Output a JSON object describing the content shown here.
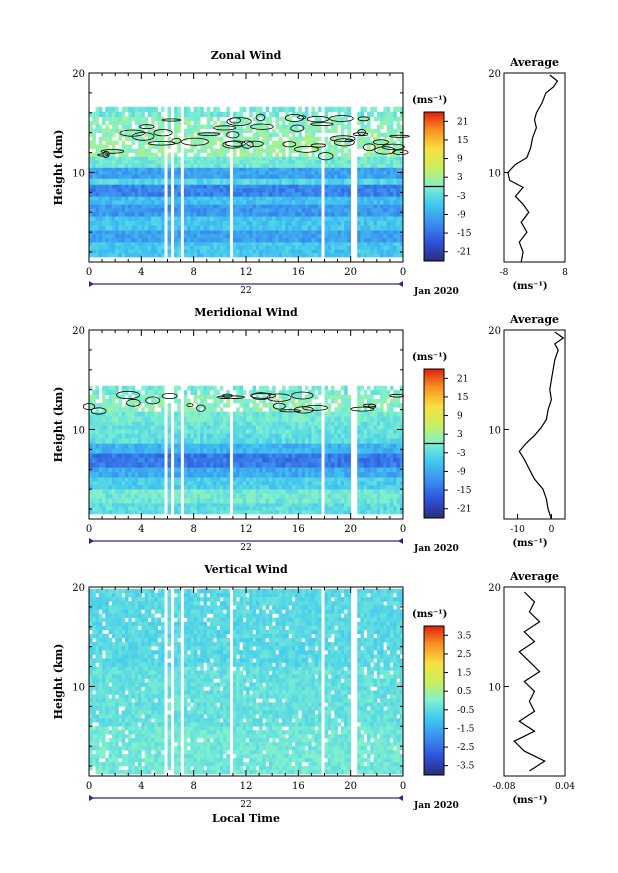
{
  "xaxis": {
    "label": "Local Time",
    "ticks": [
      "0",
      "4",
      "8",
      "12",
      "16",
      "20",
      "0"
    ],
    "date_day": "22",
    "date_month": "Jan 2020",
    "range": [
      0,
      24
    ]
  },
  "chart_data": [
    {
      "type": "heatmap",
      "title": "Zonal Wind",
      "ylabel": "Height (km)",
      "ylim": [
        1,
        20
      ],
      "yticks": [
        "20",
        "10"
      ],
      "contour_threshold": 0,
      "colorbar": {
        "unit": "(ms⁻¹)",
        "range": [
          -24,
          24
        ],
        "ticks": [
          "21",
          "15",
          "9",
          "3",
          "-3",
          "-9",
          "-15",
          "-21"
        ]
      },
      "layers": [
        {
          "z0": 1.5,
          "z1": 3.0,
          "value": -6
        },
        {
          "z0": 3.0,
          "z1": 4.2,
          "value": -10
        },
        {
          "z0": 4.2,
          "z1": 5.6,
          "value": -6
        },
        {
          "z0": 5.6,
          "z1": 6.8,
          "value": -11
        },
        {
          "z0": 6.8,
          "z1": 7.6,
          "value": -7
        },
        {
          "z0": 7.6,
          "z1": 8.8,
          "value": -13
        },
        {
          "z0": 8.8,
          "z1": 9.4,
          "value": -4
        },
        {
          "z0": 9.4,
          "z1": 10.5,
          "value": -10
        },
        {
          "z0": 10.5,
          "z1": 11.6,
          "value": -1
        },
        {
          "z0": 11.6,
          "z1": 13.6,
          "value": 2
        },
        {
          "z0": 13.6,
          "z1": 15.6,
          "value": 1
        },
        {
          "z0": 15.6,
          "z1": 16.6,
          "value": -1
        }
      ],
      "gaps": [
        [
          5.7,
          6.0
        ],
        [
          6.3,
          6.6
        ],
        [
          7.0,
          7.3
        ],
        [
          10.7,
          11.0
        ],
        [
          17.8,
          18.0
        ],
        [
          20.1,
          20.4
        ]
      ],
      "average": {
        "title": "Average",
        "xlim": [
          -8,
          8
        ],
        "xticks": [
          "-8",
          "8"
        ],
        "xunit": "(ms⁻¹)",
        "yticks": [
          "20",
          "10"
        ],
        "profile": [
          [
            1,
            -3.5
          ],
          [
            2,
            -3.0
          ],
          [
            3,
            -4.0
          ],
          [
            4,
            -2.0
          ],
          [
            5,
            -3.5
          ],
          [
            6,
            -1.5
          ],
          [
            6.8,
            -3.0
          ],
          [
            7.6,
            -5.0
          ],
          [
            8.5,
            -3.0
          ],
          [
            9.2,
            -6.5
          ],
          [
            10,
            -7.0
          ],
          [
            10.8,
            -5.0
          ],
          [
            11.5,
            -2.0
          ],
          [
            12.5,
            -1.0
          ],
          [
            13.5,
            -0.5
          ],
          [
            14.5,
            0.5
          ],
          [
            15.3,
            0.0
          ],
          [
            16.0,
            0.5
          ],
          [
            17,
            2.0
          ],
          [
            18,
            3.0
          ],
          [
            18.6,
            5.0
          ],
          [
            19.2,
            6.0
          ],
          [
            19.8,
            4.0
          ]
        ]
      }
    },
    {
      "type": "heatmap",
      "title": "Meridional Wind",
      "ylabel": "Height (km)",
      "ylim": [
        1,
        20
      ],
      "yticks": [
        "20",
        "10"
      ],
      "contour_threshold": 0,
      "colorbar": {
        "unit": "(ms⁻¹)",
        "range": [
          -24,
          24
        ],
        "ticks": [
          "21",
          "15",
          "9",
          "3",
          "-3",
          "-9",
          "-15",
          "-21"
        ]
      },
      "layers": [
        {
          "z0": 1.5,
          "z1": 2.6,
          "value": -3
        },
        {
          "z0": 2.6,
          "z1": 4.0,
          "value": -1
        },
        {
          "z0": 4.0,
          "z1": 5.2,
          "value": -5
        },
        {
          "z0": 5.2,
          "z1": 6.2,
          "value": -9
        },
        {
          "z0": 6.2,
          "z1": 7.6,
          "value": -14
        },
        {
          "z0": 7.6,
          "z1": 8.6,
          "value": -8
        },
        {
          "z0": 8.6,
          "z1": 9.6,
          "value": -3
        },
        {
          "z0": 9.6,
          "z1": 10.8,
          "value": -2
        },
        {
          "z0": 10.8,
          "z1": 11.8,
          "value": -1
        },
        {
          "z0": 11.8,
          "z1": 13.5,
          "value": 1
        },
        {
          "z0": 13.5,
          "z1": 14.4,
          "value": -1
        }
      ],
      "gaps": [
        [
          5.7,
          6.0
        ],
        [
          6.3,
          6.6
        ],
        [
          7.0,
          7.3
        ],
        [
          10.7,
          11.0
        ],
        [
          17.8,
          18.0
        ],
        [
          20.1,
          20.4
        ]
      ],
      "average": {
        "title": "Average",
        "xlim": [
          -14,
          4
        ],
        "xticks": [
          "-10",
          "0"
        ],
        "xunit": "(ms⁻¹)",
        "yticks": [
          "20",
          "10"
        ],
        "profile": [
          [
            1,
            0.0
          ],
          [
            2,
            -1.0
          ],
          [
            3,
            -1.5
          ],
          [
            4,
            -2.5
          ],
          [
            5,
            -5.0
          ],
          [
            6,
            -6.5
          ],
          [
            7,
            -8.0
          ],
          [
            7.8,
            -9.5
          ],
          [
            8.6,
            -7.5
          ],
          [
            9.4,
            -5.0
          ],
          [
            10.2,
            -3.0
          ],
          [
            11,
            -1.5
          ],
          [
            12,
            -1.0
          ],
          [
            13,
            0.0
          ],
          [
            14,
            -0.5
          ],
          [
            15,
            0.0
          ],
          [
            16,
            0.5
          ],
          [
            17,
            1.0
          ],
          [
            18,
            2.0
          ],
          [
            18.6,
            1.0
          ],
          [
            19.2,
            3.5
          ],
          [
            19.8,
            1.0
          ]
        ]
      }
    },
    {
      "type": "heatmap",
      "title": "Vertical Wind",
      "ylabel": "Height (km)",
      "ylim": [
        1,
        20
      ],
      "yticks": [
        "20",
        "10"
      ],
      "colorbar": {
        "unit": "(ms⁻¹)",
        "range": [
          -4,
          4
        ],
        "ticks": [
          "3.5",
          "2.5",
          "1.5",
          "0.5",
          "-0.5",
          "-1.5",
          "-2.5",
          "-3.5"
        ]
      },
      "layers": [
        {
          "z0": 1.2,
          "z1": 6.0,
          "value": -0.2
        },
        {
          "z0": 6.0,
          "z1": 12.0,
          "value": -0.4
        },
        {
          "z0": 12.0,
          "z1": 19.8,
          "value": -0.6
        }
      ],
      "gaps": [
        [
          5.7,
          6.0
        ],
        [
          6.3,
          6.6
        ],
        [
          7.0,
          7.3
        ],
        [
          10.7,
          11.0
        ],
        [
          17.8,
          18.0
        ],
        [
          20.1,
          20.4
        ]
      ],
      "average": {
        "title": "Average",
        "xlim": [
          -0.08,
          0.04
        ],
        "xticks": [
          "-0.08",
          "0.04"
        ],
        "xunit": "(ms⁻¹)",
        "yticks": [
          "20",
          "10"
        ],
        "profile": [
          [
            1.5,
            -0.03
          ],
          [
            2.5,
            0.0
          ],
          [
            3.5,
            -0.04
          ],
          [
            4.5,
            -0.06
          ],
          [
            5.5,
            -0.02
          ],
          [
            6.5,
            -0.05
          ],
          [
            7.5,
            -0.02
          ],
          [
            8.5,
            -0.03
          ],
          [
            9.5,
            -0.02
          ],
          [
            10.5,
            -0.04
          ],
          [
            11.5,
            -0.01
          ],
          [
            12.5,
            -0.03
          ],
          [
            13.5,
            -0.05
          ],
          [
            14.5,
            -0.02
          ],
          [
            15.5,
            -0.04
          ],
          [
            16.5,
            -0.01
          ],
          [
            17.5,
            -0.03
          ],
          [
            18.5,
            -0.02
          ],
          [
            19.5,
            -0.04
          ]
        ]
      }
    }
  ]
}
